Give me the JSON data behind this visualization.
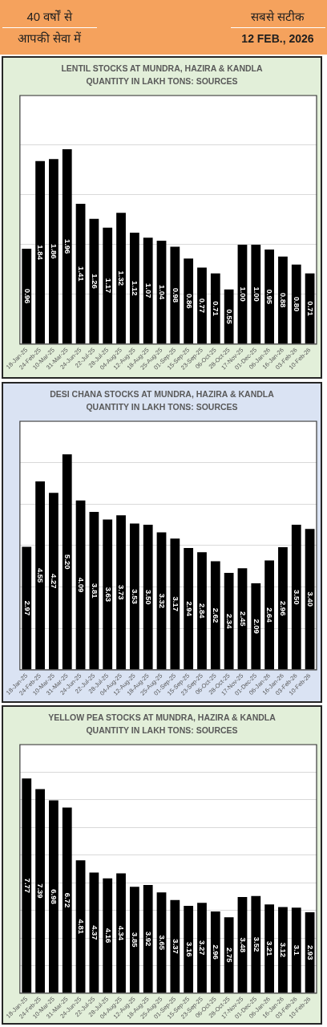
{
  "chart_data": [
    {
      "type": "other",
      "annotations": [
        "40 वर्षों से",
        "आपकी सेवा में",
        "सबसे सटीक",
        "12 FEB., 2026"
      ]
    },
    {
      "type": "bar",
      "title": "LENTIL STOCKS AT MUNDRA, HAZIRA & KANDLA",
      "subtitle": "QUANTITY IN LAKH TONS: SOURCES",
      "categories": [
        "18-Jan-25",
        "24-Feb-25",
        "10-Mar-25",
        "31-Mar-25",
        "24-Jun-25",
        "22-Jul-25",
        "28-Jul-25",
        "04-Aug-25",
        "12-Aug-25",
        "18-Aug-25",
        "25-Aug-25",
        "01-Sep-25",
        "15-Sep-25",
        "23-Sep-25",
        "06-Oct-25",
        "28-Oct-25",
        "17-Nov-25",
        "01-Dec-25",
        "06-Jan-26",
        "16-Jan-26",
        "03-Feb-26",
        "10-Feb-26"
      ],
      "values": [
        0.96,
        1.84,
        1.86,
        1.96,
        1.41,
        1.26,
        1.17,
        1.32,
        1.12,
        1.07,
        1.04,
        0.98,
        0.86,
        0.77,
        0.71,
        0.55,
        1.0,
        1.0,
        0.95,
        0.88,
        0.8,
        0.71
      ],
      "value_labels": [
        "0.96",
        "1.84",
        "1.86",
        "1.96",
        "1.41",
        "1.26",
        "1.17",
        "1.32",
        "1.12",
        "1.07",
        "1.04",
        "0.98",
        "0.86",
        "0.77",
        "0.71",
        "0.55",
        "1.00",
        "1.00",
        "0.95",
        "0.88",
        "0.80",
        "0.71"
      ],
      "color": "#000000",
      "ylim": [
        0,
        2.5
      ],
      "yticks": [
        {
          "value": 0,
          "label": null
        },
        {
          "value": 0.5,
          "label": null
        },
        {
          "value": 1,
          "label": null
        },
        {
          "value": 1.5,
          "label": null
        },
        {
          "value": 2,
          "label": null
        },
        {
          "value": 2.5,
          "label": null
        }
      ],
      "grid": "y",
      "tick_labels": "x"
    },
    {
      "type": "bar",
      "title": "DESI CHANA STOCKS AT MUNDRA, HAZIRA & KANDLA",
      "subtitle": "QUANTITY IN LAKH TONS: SOURCES",
      "categories": [
        "18-Jan-25",
        "24-Feb-25",
        "10-Mar-25",
        "31-Mar-25",
        "24-Jun-25",
        "22-Jul-25",
        "28-Jul-25",
        "04-Aug-25",
        "12-Aug-25",
        "18-Aug-25",
        "25-Aug-25",
        "01-Sep-25",
        "15-Sep-25",
        "23-Sep-25",
        "06-Oct-25",
        "28-Oct-25",
        "17-Nov-25",
        "01-Dec-25",
        "06-Jan-26",
        "16-Jan-26",
        "03-Feb-26",
        "10-Feb-26"
      ],
      "values": [
        2.97,
        4.55,
        4.27,
        5.2,
        4.09,
        3.81,
        3.63,
        3.73,
        3.53,
        3.5,
        3.32,
        3.17,
        2.94,
        2.84,
        2.62,
        2.34,
        2.45,
        2.09,
        2.64,
        2.96,
        3.5,
        3.4
      ],
      "value_labels": [
        "2.97",
        "4.55",
        "4.27",
        "5.20",
        "4.09",
        "3.81",
        "3.63",
        "3.73",
        "3.53",
        "3.50",
        "3.32",
        "3.17",
        "2.94",
        "2.84",
        "2.62",
        "2.34",
        "2.45",
        "2.09",
        "2.64",
        "2.96",
        "3.50",
        "3.40"
      ],
      "color": "#000000",
      "ylim": [
        0,
        6
      ],
      "yticks": [
        {
          "value": 0,
          "label": null
        },
        {
          "value": 1,
          "label": null
        },
        {
          "value": 2,
          "label": null
        },
        {
          "value": 3,
          "label": null
        },
        {
          "value": 4,
          "label": null
        },
        {
          "value": 5,
          "label": null
        },
        {
          "value": 6,
          "label": null
        }
      ],
      "grid": "y",
      "tick_labels": "x"
    },
    {
      "type": "bar",
      "title": "YELLOW PEA STOCKS AT MUNDRA, HAZIRA & KANDLA",
      "subtitle": "QUANTITY IN LAKH TONS: SOURCES",
      "categories": [
        "18-Jan-25",
        "24-Feb-25",
        "10-Mar-25",
        "31-Mar-25",
        "24-Jun-25",
        "22-Jul-25",
        "28-Jul-25",
        "04-Aug-25",
        "12-Aug-25",
        "18-Aug-25",
        "25-Aug-25",
        "01-Sep-25",
        "15-Sep-25",
        "23-Sep-25",
        "06-Oct-25",
        "28-Oct-25",
        "17-Nov-25",
        "01-Dec-25",
        "06-Jan-26",
        "16-Jan-26",
        "03-Feb-26",
        "10-Feb-26"
      ],
      "values": [
        7.77,
        7.39,
        6.98,
        6.72,
        4.81,
        4.37,
        4.16,
        4.34,
        3.85,
        3.92,
        3.65,
        3.37,
        3.16,
        3.27,
        2.96,
        2.75,
        3.48,
        3.52,
        3.21,
        3.12,
        3.1,
        2.93
      ],
      "value_labels": [
        "7.77",
        "7.39",
        "6.98",
        "6.72",
        "4.81",
        "4.37",
        "4.16",
        "4.34",
        "3.85",
        "3.92",
        "3.65",
        "3.37",
        "3.16",
        "3.27",
        "2.96",
        "2.75",
        "3.48",
        "3.52",
        "3.21",
        "3.12",
        "3.1",
        "2.93"
      ],
      "color": "#000000",
      "ylim": [
        0,
        9
      ],
      "yticks": [
        {
          "value": 0,
          "label": null
        },
        {
          "value": 1,
          "label": null
        },
        {
          "value": 2,
          "label": null
        },
        {
          "value": 3,
          "label": null
        },
        {
          "value": 4,
          "label": null
        },
        {
          "value": 5,
          "label": null
        },
        {
          "value": 6,
          "label": null
        },
        {
          "value": 7,
          "label": null
        },
        {
          "value": 8,
          "label": null
        },
        {
          "value": 9,
          "label": null
        }
      ],
      "grid": "y",
      "tick_labels": "x"
    }
  ]
}
